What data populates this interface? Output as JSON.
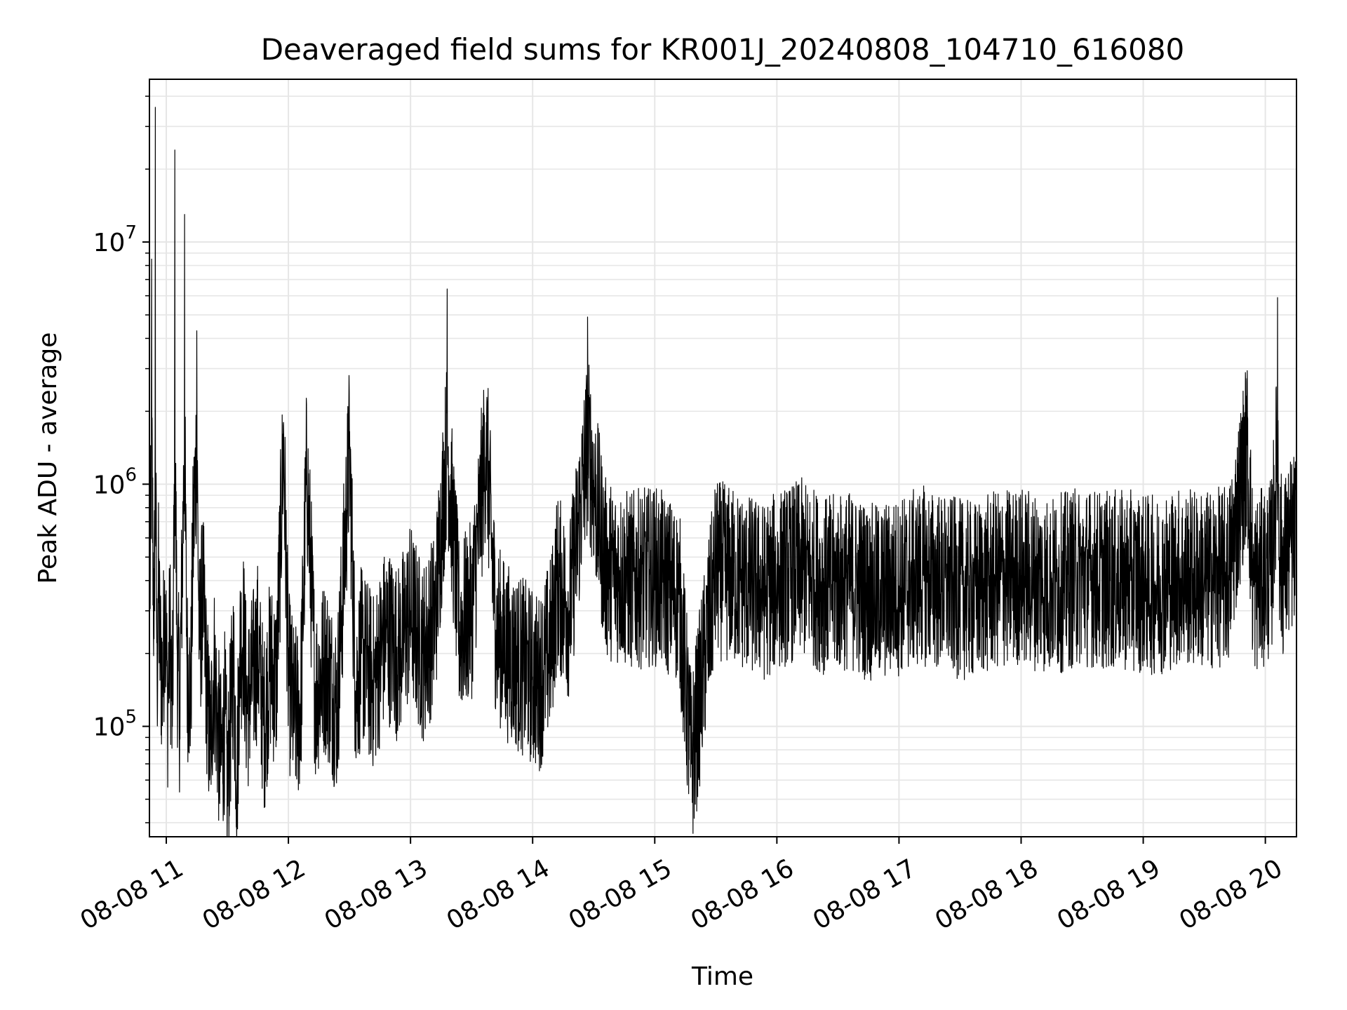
{
  "chart_data": {
    "type": "line",
    "title": "Deaveraged field sums for KR001J_20240808_104710_616080",
    "xlabel": "Time",
    "ylabel": "Peak ADU - average",
    "x_unit": "hour of 2024-08-08",
    "xlim": [
      10.862,
      20.255
    ],
    "ylim": [
      35000,
      47000000
    ],
    "yscale": "log",
    "grid": true,
    "grid_color": "#e6e6e6",
    "line_color": "#000000",
    "x_ticks": [
      {
        "value": 11,
        "label": "08-08 11"
      },
      {
        "value": 12,
        "label": "08-08 12"
      },
      {
        "value": 13,
        "label": "08-08 13"
      },
      {
        "value": 14,
        "label": "08-08 14"
      },
      {
        "value": 15,
        "label": "08-08 15"
      },
      {
        "value": 16,
        "label": "08-08 16"
      },
      {
        "value": 17,
        "label": "08-08 17"
      },
      {
        "value": 18,
        "label": "08-08 18"
      },
      {
        "value": 19,
        "label": "08-08 19"
      },
      {
        "value": 20,
        "label": "08-08 20"
      }
    ],
    "y_ticks": [
      {
        "value": 100000,
        "base": "10",
        "exp": "5"
      },
      {
        "value": 1000000,
        "base": "10",
        "exp": "6"
      },
      {
        "value": 10000000,
        "base": "10",
        "exp": "7"
      }
    ],
    "series": [
      {
        "name": "",
        "x": [
          10.865,
          10.88,
          10.9,
          10.91,
          10.925,
          10.935,
          10.95,
          10.97,
          10.99,
          11.01,
          11.03,
          11.05,
          11.07,
          11.09,
          11.11,
          11.13,
          11.15,
          11.17,
          11.2,
          11.22,
          11.25,
          11.27,
          11.3,
          11.33,
          11.36,
          11.39,
          11.42,
          11.45,
          11.48,
          11.5,
          11.52,
          11.55,
          11.58,
          11.6,
          11.63,
          11.66,
          11.7,
          11.75,
          11.8,
          11.85,
          11.9,
          11.96,
          12.0,
          12.05,
          12.1,
          12.15,
          12.22,
          12.3,
          12.4,
          12.5,
          12.55,
          12.6,
          12.7,
          12.8,
          12.9,
          13.0,
          13.1,
          13.2,
          13.3,
          13.4,
          13.5,
          13.62,
          13.7,
          13.8,
          13.9,
          14.0,
          14.05,
          14.1,
          14.15,
          14.2,
          14.3,
          14.45,
          14.6,
          14.8,
          15.0,
          15.2,
          15.3,
          15.5,
          15.7,
          15.9,
          16.0,
          16.2,
          16.4,
          16.6,
          16.8,
          17.0,
          17.2,
          17.4,
          17.6,
          17.8,
          18.0,
          18.25,
          18.5,
          18.7,
          18.9,
          19.1,
          19.3,
          19.5,
          19.7,
          19.85,
          19.9,
          20.0,
          20.05,
          20.1,
          20.12,
          20.15,
          20.2,
          20.255
        ],
        "y": [
          300000,
          8500000,
          230000,
          36000000,
          150000,
          400000,
          200000,
          150000,
          350000,
          120000,
          250000,
          100000,
          24000000,
          200000,
          120000,
          450000,
          13000000,
          180000,
          130000,
          600000,
          4300000,
          220000,
          350000,
          150000,
          80000,
          180000,
          100000,
          70000,
          110000,
          55000,
          90000,
          180000,
          60000,
          200000,
          250000,
          120000,
          150000,
          210000,
          100000,
          180000,
          150000,
          1800000,
          160000,
          110000,
          120000,
          1200000,
          140000,
          180000,
          120000,
          1400000,
          140000,
          200000,
          150000,
          250000,
          200000,
          300000,
          200000,
          280000,
          6400000,
          250000,
          300000,
          1800000,
          250000,
          200000,
          180000,
          160000,
          150000,
          180000,
          220000,
          400000,
          300000,
          4900000,
          450000,
          400000,
          420000,
          350000,
          70000,
          450000,
          400000,
          360000,
          400000,
          450000,
          380000,
          400000,
          350000,
          380000,
          420000,
          380000,
          360000,
          400000,
          420000,
          380000,
          420000,
          400000,
          400000,
          380000,
          420000,
          400000,
          420000,
          1450000,
          380000,
          420000,
          450000,
          5900000,
          500000,
          450000,
          550000,
          600000
        ]
      }
    ]
  }
}
